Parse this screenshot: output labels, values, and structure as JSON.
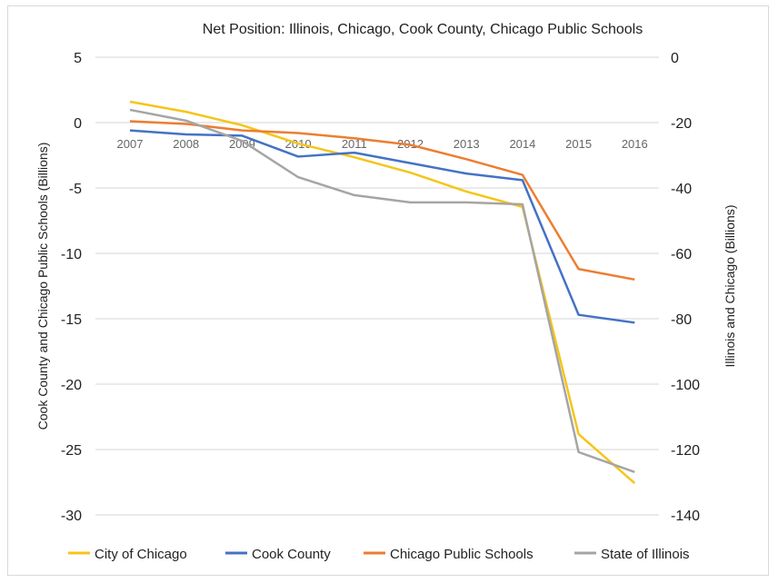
{
  "chart_data": {
    "type": "line",
    "title": "Net Position: Illinois, Chicago, Cook County, Chicago Public Schools",
    "ylabel_left": "Cook County and Chicago Public  Schools (Billions)",
    "ylabel_right": "Illinois and Chicago (Billions)",
    "xlabel": "",
    "x": [
      "2007",
      "2008",
      "2009",
      "2010",
      "2011",
      "2012",
      "2013",
      "2014",
      "2015",
      "2016"
    ],
    "ylim_left": [
      -30,
      5
    ],
    "yticks_left": [
      5,
      0,
      -5,
      -10,
      -15,
      -20,
      -25,
      -30
    ],
    "ylim_right": [
      -140,
      0
    ],
    "yticks_right": [
      0,
      -20,
      -40,
      -60,
      -80,
      -100,
      -120,
      -140
    ],
    "grid": true,
    "legend_placement": "bottom",
    "series": [
      {
        "name": "City of Chicago",
        "axis": "right",
        "color": "#f5c518",
        "values": [
          -13.6,
          -16.7,
          -20.8,
          -26.4,
          -30.6,
          -35.3,
          -41.1,
          -45.8,
          -115.3,
          -130.3
        ]
      },
      {
        "name": "Cook County",
        "axis": "left",
        "color": "#4472c4",
        "values": [
          -0.6,
          -0.9,
          -1.0,
          -2.6,
          -2.3,
          -3.1,
          -3.9,
          -4.4,
          -14.7,
          -15.3
        ]
      },
      {
        "name": "Chicago Public Schools",
        "axis": "left",
        "color": "#ed7d31",
        "values": [
          0.1,
          -0.1,
          -0.6,
          -0.8,
          -1.2,
          -1.7,
          -2.8,
          -4.0,
          -11.2,
          -12.0
        ]
      },
      {
        "name": "State of Illinois",
        "axis": "right",
        "color": "#a5a5a5",
        "values": [
          -16.1,
          -19.4,
          -25.6,
          -36.7,
          -42.2,
          -44.4,
          -44.4,
          -45.0,
          -120.8,
          -126.9
        ]
      }
    ]
  }
}
